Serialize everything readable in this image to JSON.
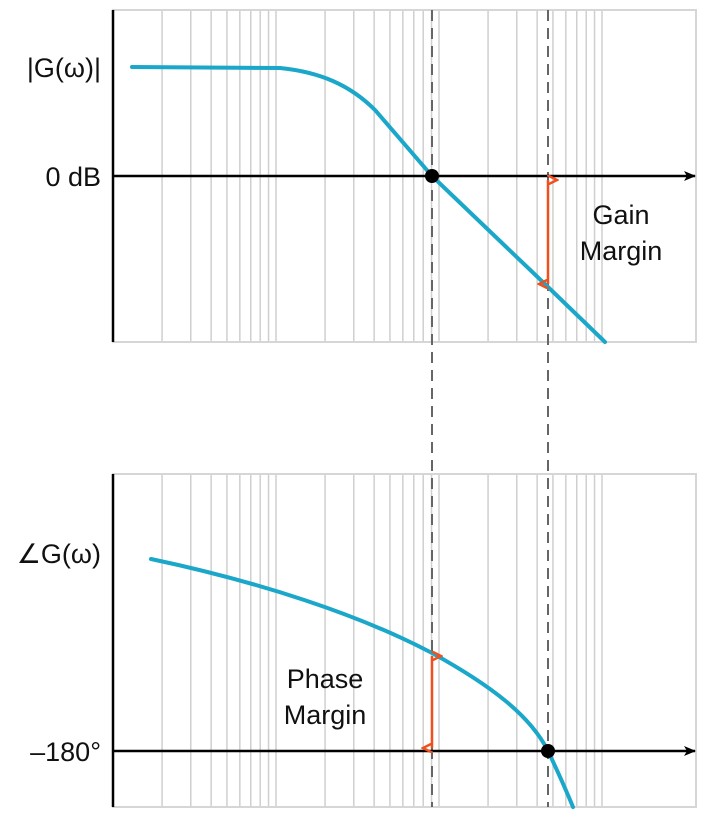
{
  "magnitude_plot": {
    "y_label": "|G(ω)|",
    "reference_label": "0 dB",
    "annotation_line1": "Gain",
    "annotation_line2": "Margin"
  },
  "phase_plot": {
    "y_label": "∠G(ω)",
    "reference_label": "–180°",
    "annotation_line1": "Phase",
    "annotation_line2": "Margin"
  },
  "colors": {
    "curve": "#1aa7c9",
    "margin_arrow": "#f0501e",
    "grid": "#cfcfcf",
    "axis": "#000000",
    "dashed_marker": "#666666"
  },
  "x_scale": "log"
}
